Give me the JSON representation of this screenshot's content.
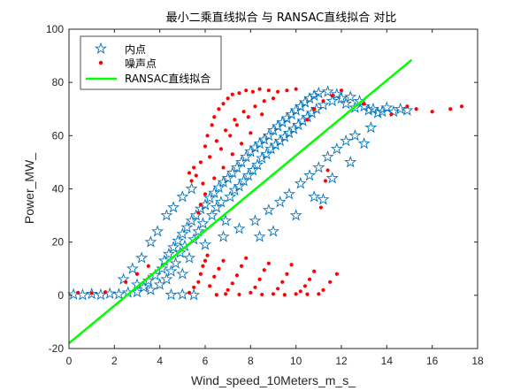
{
  "chart_data": {
    "type": "scatter",
    "title": "最小二乘直线拟合 与 RANSAC直线拟合 对比",
    "xlabel": "Wind_speed_10Meters_m_s_",
    "ylabel": "Power_MW_",
    "xlim": [
      0,
      18
    ],
    "ylim": [
      -20,
      100
    ],
    "xticks": [
      0,
      2,
      4,
      6,
      8,
      10,
      12,
      14,
      16,
      18
    ],
    "yticks": [
      -20,
      0,
      20,
      40,
      60,
      80,
      100
    ],
    "xtick_labels": [
      "0",
      "2",
      "4",
      "6",
      "8",
      "10",
      "12",
      "14",
      "16",
      "18"
    ],
    "ytick_labels": [
      "-20",
      "0",
      "20",
      "40",
      "60",
      "80",
      "100"
    ],
    "grid": false,
    "legend_position": "top-left",
    "series": [
      {
        "name": "内点",
        "marker": "pentagram",
        "color": "#0072BD",
        "points": [
          [
            0.2,
            0.3
          ],
          [
            0.6,
            0.1
          ],
          [
            1.0,
            0.5
          ],
          [
            1.4,
            0.2
          ],
          [
            1.8,
            0.6
          ],
          [
            2.2,
            0.4
          ],
          [
            2.6,
            1.0
          ],
          [
            3.0,
            1.2
          ],
          [
            3.3,
            3.0
          ],
          [
            3.5,
            5.5
          ],
          [
            3.6,
            2.0
          ],
          [
            3.8,
            7.5
          ],
          [
            4.0,
            4.0
          ],
          [
            4.1,
            10.0
          ],
          [
            4.2,
            13.0
          ],
          [
            4.3,
            6.0
          ],
          [
            4.4,
            15.5
          ],
          [
            4.5,
            9.0
          ],
          [
            4.6,
            18.0
          ],
          [
            4.7,
            12.0
          ],
          [
            4.8,
            20.5
          ],
          [
            4.9,
            16.0
          ],
          [
            5.0,
            23.0
          ],
          [
            5.0,
            8.0
          ],
          [
            5.1,
            18.5
          ],
          [
            5.2,
            25.5
          ],
          [
            5.3,
            14.0
          ],
          [
            5.4,
            28.0
          ],
          [
            5.5,
            21.0
          ],
          [
            5.6,
            30.0
          ],
          [
            5.7,
            24.0
          ],
          [
            5.8,
            32.5
          ],
          [
            5.9,
            27.0
          ],
          [
            6.0,
            34.0
          ],
          [
            6.0,
            19.0
          ],
          [
            6.2,
            36.5
          ],
          [
            6.3,
            30.0
          ],
          [
            6.4,
            38.5
          ],
          [
            6.5,
            33.0
          ],
          [
            6.6,
            40.5
          ],
          [
            6.7,
            35.0
          ],
          [
            6.8,
            42.5
          ],
          [
            6.9,
            28.0
          ],
          [
            7.0,
            44.0
          ],
          [
            7.1,
            37.0
          ],
          [
            7.2,
            46.0
          ],
          [
            7.3,
            39.5
          ],
          [
            7.4,
            48.0
          ],
          [
            7.5,
            41.0
          ],
          [
            7.6,
            50.0
          ],
          [
            7.7,
            43.0
          ],
          [
            7.8,
            52.0
          ],
          [
            7.9,
            45.0
          ],
          [
            8.0,
            54.0
          ],
          [
            8.1,
            47.0
          ],
          [
            8.2,
            55.5
          ],
          [
            8.3,
            49.0
          ],
          [
            8.4,
            57.0
          ],
          [
            8.5,
            51.5
          ],
          [
            8.6,
            58.5
          ],
          [
            8.7,
            53.0
          ],
          [
            8.8,
            60.0
          ],
          [
            8.9,
            55.0
          ],
          [
            9.0,
            62.0
          ],
          [
            9.1,
            56.5
          ],
          [
            9.2,
            63.5
          ],
          [
            9.3,
            58.0
          ],
          [
            9.4,
            65.0
          ],
          [
            9.5,
            59.5
          ],
          [
            9.6,
            66.5
          ],
          [
            9.7,
            61.0
          ],
          [
            9.8,
            68.0
          ],
          [
            9.9,
            62.5
          ],
          [
            10.0,
            69.5
          ],
          [
            10.1,
            64.0
          ],
          [
            10.2,
            71.0
          ],
          [
            10.3,
            65.5
          ],
          [
            10.4,
            72.5
          ],
          [
            10.5,
            67.0
          ],
          [
            10.6,
            74.0
          ],
          [
            10.7,
            68.5
          ],
          [
            10.8,
            75.0
          ],
          [
            10.9,
            70.0
          ],
          [
            11.0,
            76.0
          ],
          [
            11.2,
            71.5
          ],
          [
            11.4,
            76.5
          ],
          [
            11.6,
            73.0
          ],
          [
            11.8,
            75.5
          ],
          [
            12.0,
            74.0
          ],
          [
            12.2,
            72.0
          ],
          [
            12.4,
            74.5
          ],
          [
            12.6,
            70.5
          ],
          [
            12.8,
            73.0
          ],
          [
            13.0,
            71.0
          ],
          [
            13.2,
            69.5
          ],
          [
            13.4,
            70.0
          ],
          [
            13.6,
            68.5
          ],
          [
            13.8,
            69.0
          ],
          [
            14.0,
            70.5
          ],
          [
            14.3,
            69.0
          ],
          [
            14.6,
            70.0
          ],
          [
            14.9,
            69.5
          ],
          [
            6.8,
            22.0
          ],
          [
            7.5,
            25.0
          ],
          [
            8.2,
            28.0
          ],
          [
            8.8,
            32.0
          ],
          [
            9.3,
            35.0
          ],
          [
            9.7,
            38.0
          ],
          [
            10.2,
            42.0
          ],
          [
            10.6,
            45.0
          ],
          [
            11.0,
            48.0
          ],
          [
            11.4,
            52.0
          ],
          [
            11.8,
            55.0
          ],
          [
            12.2,
            58.0
          ],
          [
            12.6,
            60.0
          ],
          [
            13.0,
            57.0
          ],
          [
            10.8,
            37.0
          ],
          [
            11.6,
            44.0
          ],
          [
            12.4,
            50.0
          ],
          [
            13.3,
            63.0
          ],
          [
            9.0,
            24.0
          ],
          [
            8.4,
            22.0
          ],
          [
            10.0,
            30.0
          ],
          [
            11.2,
            36.0
          ],
          [
            4.5,
            0.2
          ],
          [
            5.0,
            0.3
          ],
          [
            5.5,
            0.1
          ],
          [
            3.0,
            4.0
          ],
          [
            2.4,
            6.0
          ],
          [
            2.8,
            10.0
          ],
          [
            3.2,
            14.0
          ],
          [
            3.6,
            20.0
          ],
          [
            3.9,
            24.0
          ],
          [
            4.3,
            30.0
          ],
          [
            4.6,
            33.0
          ],
          [
            5.0,
            37.0
          ],
          [
            5.4,
            40.0
          ]
        ]
      },
      {
        "name": "噪声点",
        "marker": "point",
        "color": "#FF0000",
        "points": [
          [
            5.6,
            45.0
          ],
          [
            5.8,
            50.0
          ],
          [
            6.0,
            56.0
          ],
          [
            6.1,
            60.0
          ],
          [
            6.3,
            64.0
          ],
          [
            6.4,
            67.0
          ],
          [
            6.6,
            70.0
          ],
          [
            6.8,
            72.0
          ],
          [
            7.0,
            74.0
          ],
          [
            7.2,
            75.5
          ],
          [
            7.5,
            76.0
          ],
          [
            7.8,
            77.0
          ],
          [
            8.1,
            76.5
          ],
          [
            8.4,
            77.5
          ],
          [
            8.8,
            77.0
          ],
          [
            9.2,
            76.5
          ],
          [
            9.6,
            77.0
          ],
          [
            10.0,
            77.5
          ],
          [
            6.2,
            52.0
          ],
          [
            6.5,
            58.0
          ],
          [
            6.9,
            62.0
          ],
          [
            7.3,
            66.0
          ],
          [
            7.7,
            69.0
          ],
          [
            8.2,
            71.0
          ],
          [
            8.6,
            73.0
          ],
          [
            9.0,
            74.0
          ],
          [
            5.9,
            42.0
          ],
          [
            6.0,
            38.0
          ],
          [
            5.8,
            34.0
          ],
          [
            5.7,
            31.0
          ],
          [
            6.8,
            48.0
          ],
          [
            7.2,
            53.0
          ],
          [
            7.6,
            57.0
          ],
          [
            8.0,
            61.0
          ],
          [
            6.4,
            44.0
          ],
          [
            5.5,
            48.0
          ],
          [
            5.3,
            46.0
          ],
          [
            5.4,
            43.0
          ],
          [
            6.7,
            55.0
          ],
          [
            7.1,
            60.0
          ],
          [
            7.4,
            64.0
          ],
          [
            7.9,
            67.0
          ],
          [
            8.5,
            68.0
          ],
          [
            5.3,
            1.0
          ],
          [
            5.5,
            3.0
          ],
          [
            5.7,
            5.0
          ],
          [
            5.8,
            8.0
          ],
          [
            5.9,
            11.0
          ],
          [
            6.0,
            13.0
          ],
          [
            6.1,
            15.0
          ],
          [
            6.2,
            3.5
          ],
          [
            6.4,
            7.0
          ],
          [
            6.6,
            10.0
          ],
          [
            6.8,
            13.0
          ],
          [
            6.9,
            0.5
          ],
          [
            7.0,
            2.0
          ],
          [
            7.2,
            4.5
          ],
          [
            7.4,
            7.5
          ],
          [
            7.6,
            11.0
          ],
          [
            7.8,
            14.0
          ],
          [
            8.0,
            1.0
          ],
          [
            8.2,
            3.0
          ],
          [
            8.4,
            6.0
          ],
          [
            8.6,
            9.5
          ],
          [
            8.8,
            12.0
          ],
          [
            9.0,
            0.5
          ],
          [
            9.2,
            2.5
          ],
          [
            9.4,
            5.0
          ],
          [
            9.6,
            8.0
          ],
          [
            9.8,
            11.5
          ],
          [
            10.0,
            0.5
          ],
          [
            10.2,
            1.5
          ],
          [
            10.4,
            3.5
          ],
          [
            10.6,
            6.0
          ],
          [
            10.8,
            9.0
          ],
          [
            11.0,
            0.5
          ],
          [
            11.2,
            2.0
          ],
          [
            11.5,
            5.0
          ],
          [
            11.8,
            8.0
          ],
          [
            8.5,
            0.3
          ],
          [
            9.5,
            0.2
          ],
          [
            10.5,
            0.4
          ],
          [
            6.5,
            0.2
          ],
          [
            7.5,
            0.3
          ],
          [
            2.5,
            5.0
          ],
          [
            3.0,
            8.0
          ],
          [
            3.5,
            11.0
          ],
          [
            0.4,
            1.0
          ],
          [
            1.0,
            0.8
          ],
          [
            1.6,
            1.2
          ],
          [
            10.5,
            66.0
          ],
          [
            10.8,
            70.0
          ],
          [
            11.2,
            73.0
          ],
          [
            11.6,
            75.0
          ],
          [
            12.0,
            77.0
          ],
          [
            13.0,
            72.0
          ],
          [
            14.2,
            68.0
          ],
          [
            14.9,
            71.0
          ],
          [
            15.3,
            70.0
          ],
          [
            16.0,
            69.0
          ],
          [
            16.8,
            70.0
          ],
          [
            17.3,
            71.0
          ],
          [
            11.3,
            43.0
          ],
          [
            11.4,
            47.0
          ],
          [
            11.1,
            33.0
          ]
        ]
      },
      {
        "name": "RANSAC直线拟合",
        "marker": "line",
        "color": "#00FF00",
        "x": [
          0,
          15.1
        ],
        "y": [
          -18.0,
          88.5
        ]
      }
    ]
  }
}
